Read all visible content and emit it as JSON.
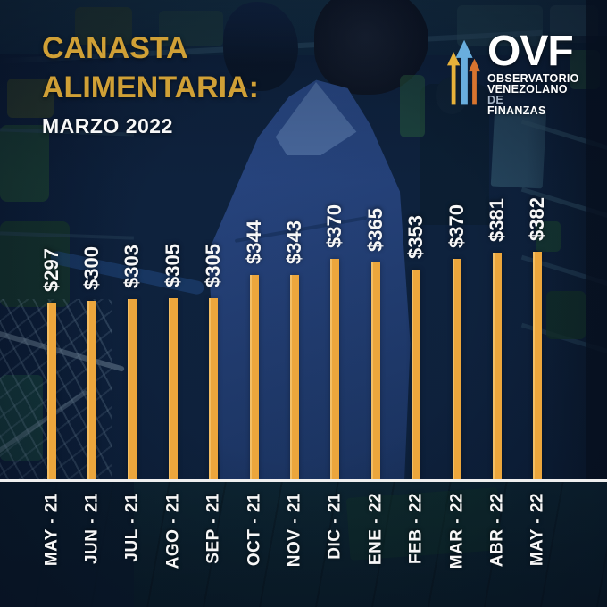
{
  "header": {
    "title_line1": "CANASTA",
    "title_line2": "ALIMENTARIA:",
    "subtitle": "MARZO 2022"
  },
  "logo": {
    "acronym": "OVF",
    "line1": "OBSERVATORIO",
    "line2": "VENEZOLANO",
    "line2_suffix": "DE",
    "line3": "FINANZAS"
  },
  "chart_data": {
    "type": "bar",
    "title": "CANASTA ALIMENTARIA: MARZO 2022",
    "categories": [
      "MAY - 21",
      "JUN - 21",
      "JUL - 21",
      "AGO - 21",
      "SEP - 21",
      "OCT - 21",
      "NOV - 21",
      "DIC - 21",
      "ENE - 22",
      "FEB - 22",
      "MAR - 22",
      "ABR - 22",
      "MAY - 22"
    ],
    "values": [
      297,
      300,
      303,
      305,
      305,
      344,
      343,
      370,
      365,
      353,
      370,
      381,
      382
    ],
    "value_labels": [
      "$297",
      "$300",
      "$303",
      "$305",
      "$305",
      "$344",
      "$343",
      "$370",
      "$365",
      "$353",
      "$370",
      "$381",
      "$382"
    ],
    "currency": "USD",
    "ylim": [
      0,
      400
    ],
    "orientation": "vertical",
    "gridlines": false,
    "legend_position": "none",
    "label_rotation_degrees": 90,
    "bar_color": "#ECA63C",
    "value_label_color": "#F7F7F7",
    "category_label_color": "#F7F7F7",
    "baseline_color": "#EFEFEF"
  },
  "colors": {
    "title_gold": "#D0A036",
    "background_navy": "#0F2440",
    "bar_gold": "#ECA63C",
    "arrow_yellow": "#E8B23A",
    "arrow_blue": "#69AEDE",
    "arrow_orange": "#D8742F",
    "de_gray": "#A7B6C8"
  }
}
